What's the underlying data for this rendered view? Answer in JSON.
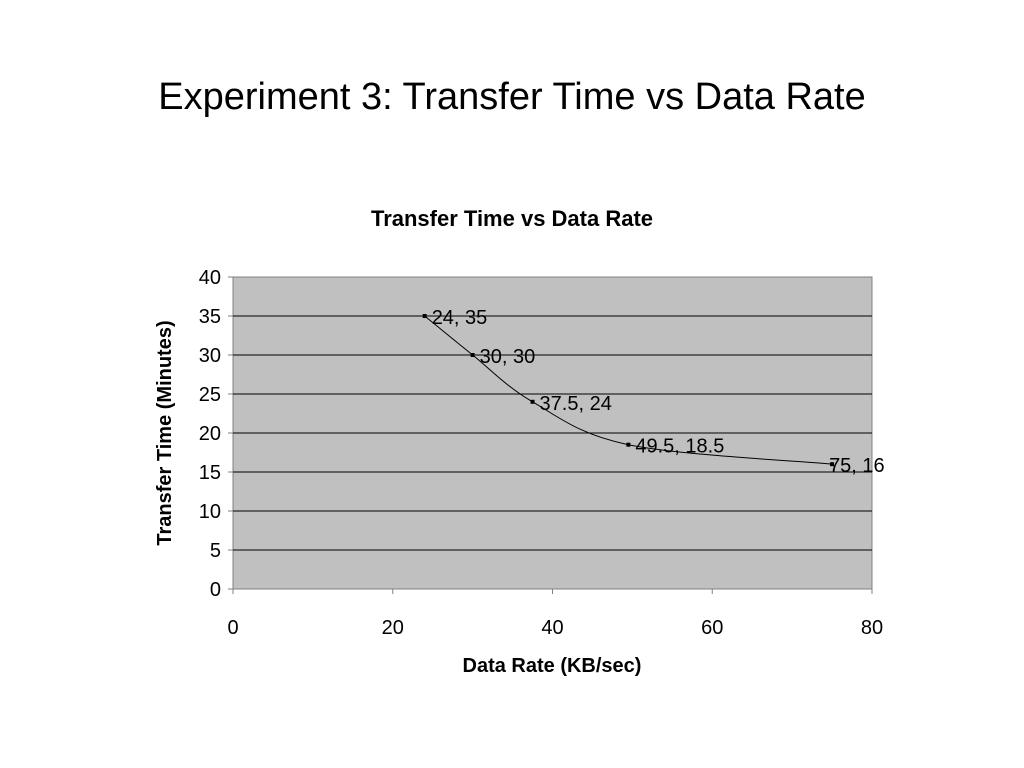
{
  "slide": {
    "title": "Experiment 3: Transfer Time vs Data Rate"
  },
  "chart_data": {
    "type": "scatter",
    "title": "Transfer Time vs Data Rate",
    "xlabel": "Data Rate (KB/sec)",
    "ylabel": "Transfer Time (Minutes)",
    "xlim": [
      0,
      80
    ],
    "ylim": [
      0,
      40
    ],
    "x_ticks": [
      0,
      20,
      40,
      60,
      80
    ],
    "y_ticks": [
      0,
      5,
      10,
      15,
      20,
      25,
      30,
      35,
      40
    ],
    "grid": "horizontal",
    "plot_background": "#c0c0c0",
    "line_style": "smoothed",
    "series": [
      {
        "points": [
          {
            "x": 24,
            "y": 35,
            "label": "24, 35"
          },
          {
            "x": 30,
            "y": 30,
            "label": "30, 30"
          },
          {
            "x": 37.5,
            "y": 24,
            "label": "37.5, 24"
          },
          {
            "x": 49.5,
            "y": 18.5,
            "label": "49.5, 18.5"
          },
          {
            "x": 75,
            "y": 16,
            "label": "75, 16"
          }
        ]
      }
    ]
  }
}
